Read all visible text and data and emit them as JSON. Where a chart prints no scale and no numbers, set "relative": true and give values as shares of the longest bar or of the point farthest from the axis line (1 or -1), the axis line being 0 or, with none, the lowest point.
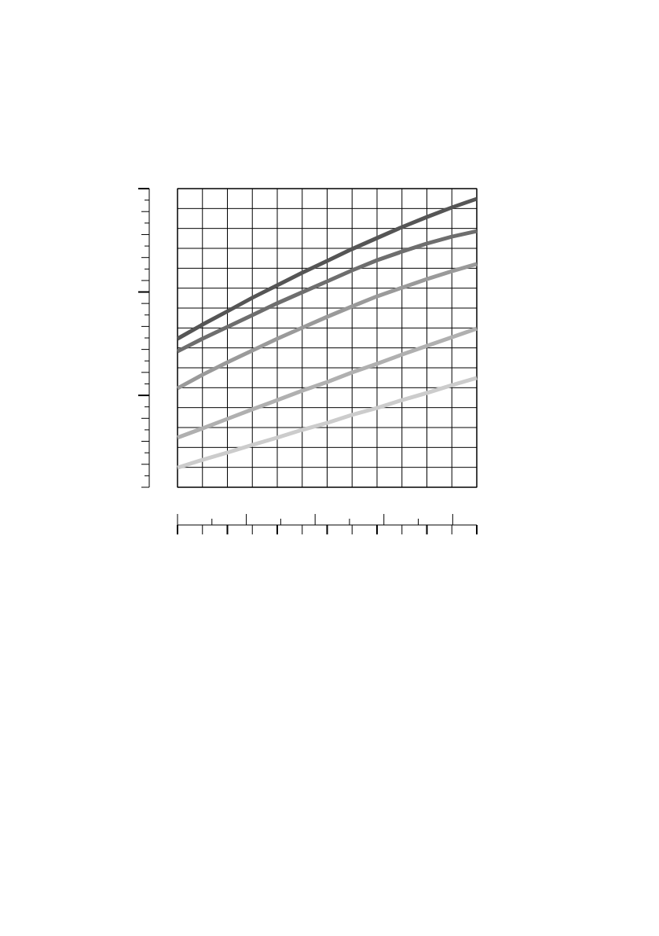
{
  "chart_data": {
    "type": "line",
    "relative": true,
    "grid": true,
    "marker": "none",
    "line_style": "solid",
    "categories": [
      null,
      null,
      null,
      null,
      null,
      null,
      null,
      null,
      null,
      null,
      null,
      null,
      null
    ],
    "series": [
      {
        "color": "#555555",
        "values": [
          0.515,
          0.564,
          0.61,
          0.657,
          0.7,
          0.744,
          0.785,
          0.826,
          0.864,
          0.902,
          0.937,
          0.97,
          1
        ]
      },
      {
        "color": "#6e6e6e",
        "values": [
          0.471,
          0.515,
          0.556,
          0.597,
          0.638,
          0.676,
          0.714,
          0.752,
          0.787,
          0.817,
          0.845,
          0.869,
          0.888
        ]
      },
      {
        "color": "#9a9a9a",
        "values": [
          0.343,
          0.39,
          0.433,
          0.474,
          0.515,
          0.553,
          0.591,
          0.627,
          0.662,
          0.692,
          0.722,
          0.749,
          0.774
        ]
      },
      {
        "color": "#b0b0b0",
        "values": [
          0.172,
          0.204,
          0.237,
          0.27,
          0.302,
          0.335,
          0.365,
          0.398,
          0.428,
          0.46,
          0.49,
          0.52,
          0.55
        ]
      },
      {
        "color": "#cccccc",
        "values": [
          0.068,
          0.095,
          0.12,
          0.147,
          0.172,
          0.199,
          0.223,
          0.251,
          0.275,
          0.302,
          0.327,
          0.354,
          0.379
        ]
      }
    ]
  }
}
